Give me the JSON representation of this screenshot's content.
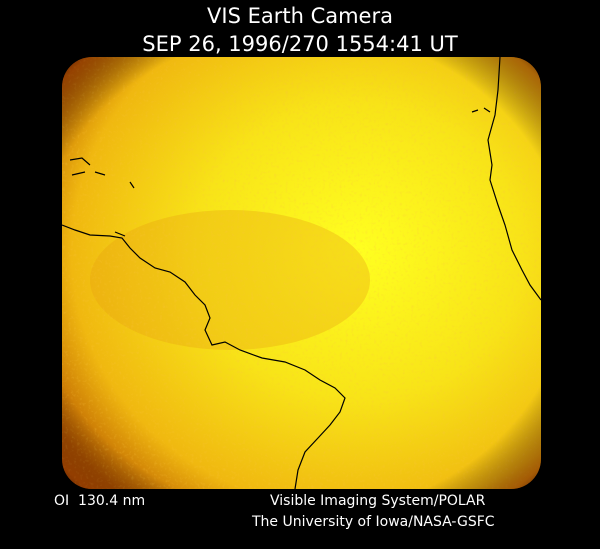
{
  "header": {
    "title": "VIS Earth Camera",
    "subtitle": "SEP 26, 1996/270 1554:41 UT"
  },
  "footer": {
    "filter": "OI  130.4 nm",
    "credits": [
      "Visible Imaging System/POLAR",
      "The University of Iowa/NASA-GSFC"
    ]
  }
}
